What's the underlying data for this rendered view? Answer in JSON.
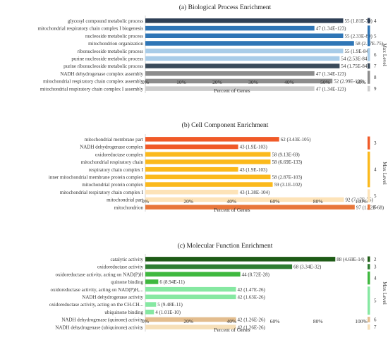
{
  "chart_data": [
    {
      "type": "bar",
      "orientation": "horizontal",
      "title": "(a) Biological Process Enrichment",
      "xlabel": "Percent of Genes",
      "xlim": [
        0,
        60
      ],
      "ticks": [
        "0%",
        "10%",
        "20%",
        "30%",
        "40%",
        "50%",
        "60%"
      ],
      "legend_title": "Max Level",
      "legend_placement": "right",
      "categories": [
        "glycosyl compound metabolic process",
        "mitochondrial respiratory chain complex I biogenesis",
        "nucleoside metabolic process",
        "mitochondrion organization",
        "ribonucleoside metabolic process",
        "purine nucleoside metabolic process",
        "purine ribonucleoside metabolic process",
        "NADH dehydrogenase complex assembly",
        "mitochondrial respiratory chain complex assembly",
        "mitochondrial respiratory chain complex I assembly"
      ],
      "values": [
        55,
        47,
        55,
        58,
        55,
        54,
        54,
        47,
        52,
        47
      ],
      "labels": [
        "55 (1.81E-79)",
        "47 (1.34E-123)",
        "55 (2.33E-80)",
        "58 (2.17E-75)",
        "55 (1.9E-84)",
        "54 (2.53E-84)",
        "54 (1.75E-84)",
        "47 (1.34E-123)",
        "52 (2.99E-120)",
        "47 (1.34E-123)"
      ],
      "levels": [
        "4",
        "5",
        "5",
        "5",
        "6",
        "6",
        "7",
        "8",
        "8",
        "9"
      ],
      "colors": [
        "#2e3f55",
        "#2e75b6",
        "#2e75b6",
        "#2e75b6",
        "#a9cce8",
        "#a9cce8",
        "#3a4a5a",
        "#8c8c8c",
        "#8c8c8c",
        "#cccccc"
      ]
    },
    {
      "type": "bar",
      "orientation": "horizontal",
      "title": "(b) Cell Component Enrichment",
      "xlabel": "Percent of Genes",
      "xlim": [
        0,
        100
      ],
      "ticks": [
        "0%",
        "20%",
        "40%",
        "60%",
        "80%",
        "100%"
      ],
      "legend_title": "Max Level",
      "legend_placement": "right",
      "categories": [
        "mitochondrial membrane part",
        "NADH dehydrogenase complex",
        "oxidoreductase complex",
        "mitochondrial respiratory chain",
        "respiratory chain complex I",
        "inner mitochondrial membrane protein complex",
        "mitochondrial protein complex",
        "mitochondrial respiratory chain complex I",
        "mitochondrial part",
        "mitochondrion"
      ],
      "values": [
        62,
        43,
        58,
        58,
        43,
        58,
        59,
        43,
        92,
        97
      ],
      "labels": [
        "62 (3.43E-105)",
        "43 (1.9E-103)",
        "58 (9.13E-69)",
        "58 (6.69E-133)",
        "43 (1.9E-103)",
        "58 (2.87E-103)",
        "59 (3.1E-102)",
        "43 (1.38E-104)",
        "92 (7.17E-75)",
        "97 (1.42E-68)"
      ],
      "levels": [
        "3",
        "3",
        "4",
        "4",
        "4",
        "4",
        "4",
        "5",
        "5",
        "6"
      ],
      "colors": [
        "#f05a28",
        "#f05a28",
        "#fbb91c",
        "#fbb91c",
        "#fbb91c",
        "#fbb91c",
        "#fbb91c",
        "#fde3b8",
        "#fde3b8",
        "#e8763a"
      ]
    },
    {
      "type": "bar",
      "orientation": "horizontal",
      "title": "(c) Molecular Function Enrichment",
      "xlabel": "Percent of Genes",
      "xlim": [
        0,
        100
      ],
      "ticks": [
        "0%",
        "20%",
        "40%",
        "60%",
        "80%",
        "100%"
      ],
      "legend_title": "Max Level",
      "legend_placement": "right",
      "categories": [
        "catalytic activity",
        "oxidoreductase activity",
        "oxidoreductase activity, acting on NAD(P)H",
        "quinone binding",
        "oxidoreductase activity, acting on NAD(P)H,...",
        "NADH dehydrogenase activity",
        "oxidoreductase activity, acting on the CH-CH...",
        "ubiquinone binding",
        "NADH dehydrogenase (quinone) activity",
        "NADH dehydrogenase (ubiquinone) activity"
      ],
      "values": [
        88,
        68,
        44,
        6,
        42,
        42,
        5,
        4,
        42,
        42
      ],
      "labels": [
        "88 (4.69E-14)",
        "68 (3.34E-32)",
        "44 (8.72E-28)",
        "6 (8.94E-11)",
        "42 (1.47E-26)",
        "42 (1.63E-26)",
        "5 (9.48E-11)",
        "4 (1.01E-10)",
        "42 (1.26E-26)",
        "42 (1.26E-26)"
      ],
      "levels": [
        "2",
        "3",
        "4",
        "4",
        "5",
        "5",
        "5",
        "5",
        "6",
        "7"
      ],
      "colors": [
        "#1e5b16",
        "#2e7d32",
        "#3fb83f",
        "#3fb83f",
        "#86e8a2",
        "#86e8a2",
        "#86e8a2",
        "#86e8a2",
        "#e3bd8e",
        "#f6dfb8"
      ]
    }
  ]
}
